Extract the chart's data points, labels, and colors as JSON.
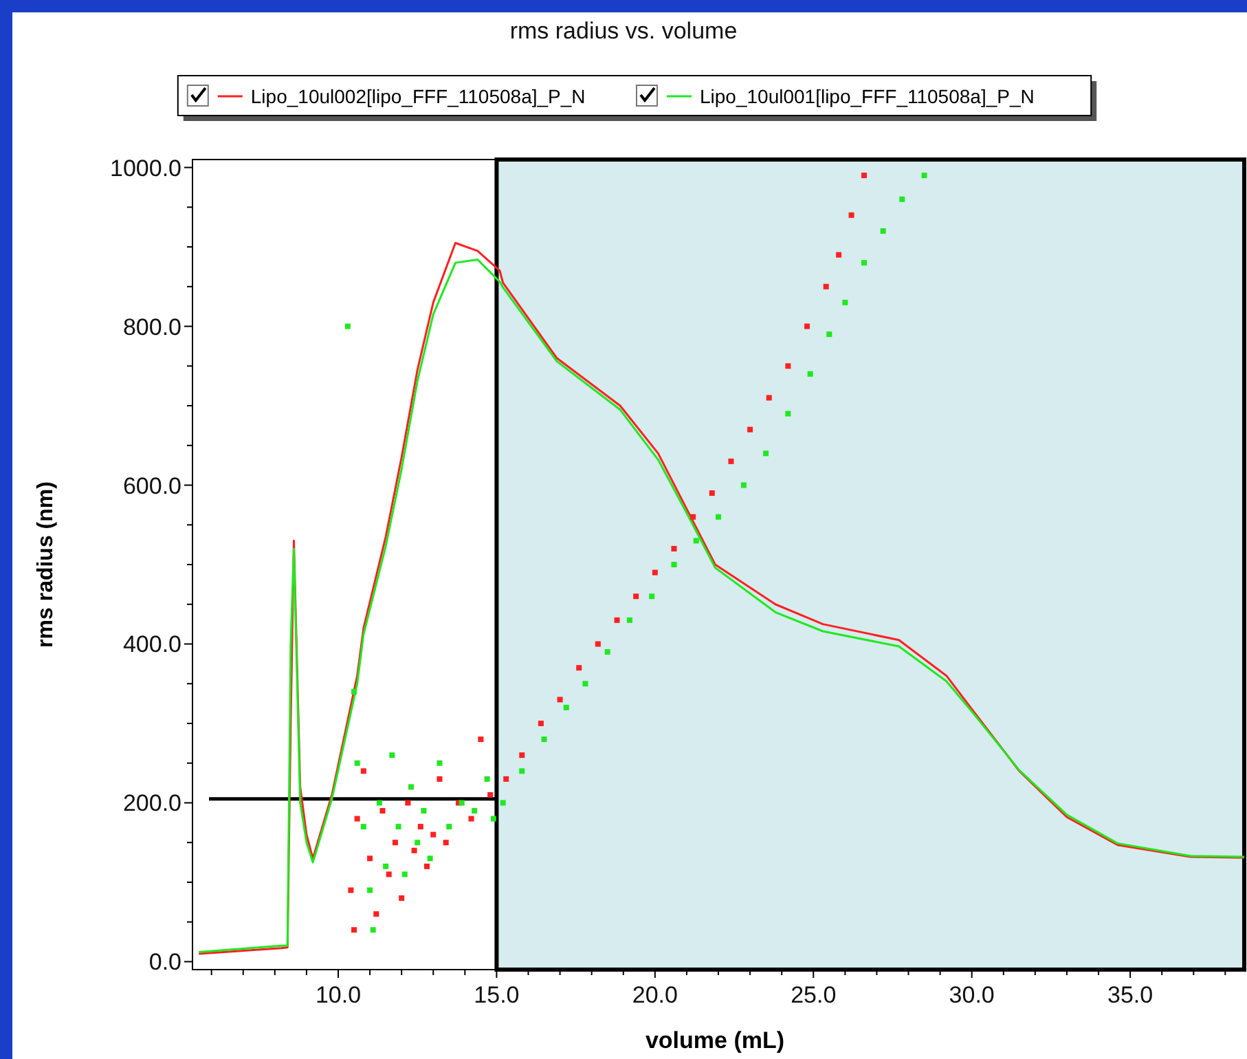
{
  "chart_data": {
    "type": "line",
    "title": "rms radius vs. volume",
    "xlabel": "volume (mL)",
    "ylabel": "rms radius (nm)",
    "xlim": [
      5.4,
      38.6
    ],
    "ylim": [
      -10,
      1010
    ],
    "xticks": [
      {
        "value": 6,
        "label": null
      },
      {
        "value": 7,
        "label": null
      },
      {
        "value": 8,
        "label": null
      },
      {
        "value": 9,
        "label": null
      },
      {
        "value": 10,
        "label": "10.0"
      },
      {
        "value": 11,
        "label": null
      },
      {
        "value": 12,
        "label": null
      },
      {
        "value": 13,
        "label": null
      },
      {
        "value": 14,
        "label": null
      },
      {
        "value": 15,
        "label": "15.0"
      },
      {
        "value": 16,
        "label": null
      },
      {
        "value": 17,
        "label": null
      },
      {
        "value": 18,
        "label": null
      },
      {
        "value": 19,
        "label": null
      },
      {
        "value": 20,
        "label": "20.0"
      },
      {
        "value": 21,
        "label": null
      },
      {
        "value": 22,
        "label": null
      },
      {
        "value": 23,
        "label": null
      },
      {
        "value": 24,
        "label": null
      },
      {
        "value": 25,
        "label": "25.0"
      },
      {
        "value": 26,
        "label": null
      },
      {
        "value": 27,
        "label": null
      },
      {
        "value": 28,
        "label": null
      },
      {
        "value": 29,
        "label": null
      },
      {
        "value": 30,
        "label": "30.0"
      },
      {
        "value": 31,
        "label": null
      },
      {
        "value": 32,
        "label": null
      },
      {
        "value": 33,
        "label": null
      },
      {
        "value": 34,
        "label": null
      },
      {
        "value": 35,
        "label": "35.0"
      },
      {
        "value": 36,
        "label": null
      },
      {
        "value": 37,
        "label": null
      },
      {
        "value": 38,
        "label": null
      }
    ],
    "yticks": [
      {
        "value": 0,
        "label": "0.0"
      },
      {
        "value": 50,
        "label": null
      },
      {
        "value": 100,
        "label": null
      },
      {
        "value": 150,
        "label": null
      },
      {
        "value": 200,
        "label": "200.0"
      },
      {
        "value": 250,
        "label": null
      },
      {
        "value": 300,
        "label": null
      },
      {
        "value": 350,
        "label": null
      },
      {
        "value": 400,
        "label": "400.0"
      },
      {
        "value": 450,
        "label": null
      },
      {
        "value": 500,
        "label": null
      },
      {
        "value": 550,
        "label": null
      },
      {
        "value": 600,
        "label": "600.0"
      },
      {
        "value": 650,
        "label": null
      },
      {
        "value": 700,
        "label": null
      },
      {
        "value": 750,
        "label": null
      },
      {
        "value": 800,
        "label": "800.0"
      },
      {
        "value": 850,
        "label": null
      },
      {
        "value": 900,
        "label": null
      },
      {
        "value": 950,
        "label": null
      },
      {
        "value": 1000,
        "label": "1000.0"
      }
    ],
    "legend": "top",
    "bands": [
      {
        "axis": "x",
        "from": 15,
        "to": 38.6,
        "color": "#d6ecef"
      }
    ],
    "ref_lines": [
      {
        "axis": "y",
        "value": 205,
        "color": "#000000"
      }
    ],
    "series": [
      {
        "name": "Lipo_10ul002[lipo_FFF_110508a]_P_N",
        "color": "#ff2020",
        "x": [
          5.6,
          8.2,
          8.4,
          8.5,
          8.6,
          8.8,
          9.0,
          9.2,
          9.8,
          10.6,
          10.8,
          11.5,
          12.0,
          12.5,
          13.0,
          13.7,
          14.4,
          15.1,
          15.2,
          16.9,
          18.9,
          20.1,
          21.0,
          21.9,
          23.8,
          25.3,
          27.7,
          29.2,
          30.0,
          31.5,
          33.0,
          34.6,
          36.9,
          38.6
        ],
        "values": [
          10,
          17,
          18,
          300,
          530,
          220,
          160,
          130,
          210,
          360,
          420,
          535,
          635,
          745,
          830,
          905,
          895,
          870,
          855,
          760,
          700,
          640,
          570,
          500,
          450,
          425,
          405,
          360,
          318,
          240,
          182,
          147,
          132,
          131
        ]
      },
      {
        "name": "Lipo_10ul001[lipo_FFF_110508a]_P_N",
        "color": "#20e820",
        "x": [
          5.6,
          8.2,
          8.4,
          8.5,
          8.6,
          8.8,
          9.0,
          9.2,
          9.8,
          10.6,
          10.8,
          11.5,
          12.0,
          12.5,
          13.0,
          13.7,
          14.4,
          15.1,
          15.2,
          16.9,
          18.9,
          20.1,
          21.0,
          21.9,
          23.8,
          25.3,
          27.7,
          29.2,
          30.0,
          31.5,
          33.0,
          34.6,
          36.9,
          38.6
        ],
        "values": [
          12,
          20,
          20,
          400,
          520,
          200,
          150,
          125,
          205,
          350,
          412,
          523,
          620,
          731,
          815,
          880,
          884,
          856,
          849,
          756,
          695,
          632,
          565,
          496,
          440,
          416,
          397,
          353,
          315,
          241,
          185,
          149,
          133,
          132
        ]
      },
      {
        "type": "scatter",
        "color": "#ff2020",
        "marker": "square",
        "x": [
          10.4,
          10.5,
          10.6,
          10.8,
          11.0,
          11.2,
          11.4,
          11.6,
          11.8,
          12.0,
          12.2,
          12.4,
          12.6,
          12.8,
          13.0,
          13.2,
          13.4,
          13.8,
          14.2,
          14.5,
          14.8,
          15.3,
          15.8,
          16.4,
          17.0,
          17.6,
          18.2,
          18.8,
          19.4,
          20.0,
          20.6,
          21.2,
          21.8,
          22.4,
          23.0,
          23.6,
          24.2,
          24.8,
          25.4,
          25.8,
          26.2,
          26.6
        ],
        "values": [
          90,
          40,
          180,
          240,
          130,
          60,
          190,
          110,
          150,
          80,
          200,
          140,
          170,
          120,
          160,
          230,
          150,
          200,
          180,
          280,
          210,
          230,
          260,
          300,
          330,
          370,
          400,
          430,
          460,
          490,
          520,
          560,
          590,
          630,
          670,
          710,
          750,
          800,
          850,
          890,
          940,
          990
        ]
      },
      {
        "type": "scatter",
        "color": "#20e820",
        "marker": "square",
        "x": [
          10.3,
          10.5,
          10.6,
          10.8,
          11.0,
          11.1,
          11.3,
          11.5,
          11.7,
          11.9,
          12.1,
          12.3,
          12.5,
          12.7,
          12.9,
          13.2,
          13.5,
          13.9,
          14.3,
          14.7,
          14.9,
          15.2,
          15.8,
          16.5,
          17.2,
          17.8,
          18.5,
          19.2,
          19.9,
          20.6,
          21.3,
          22.0,
          22.8,
          23.5,
          24.2,
          24.9,
          25.5,
          26.0,
          26.6,
          27.2,
          27.8,
          28.5
        ],
        "values": [
          800,
          340,
          250,
          170,
          90,
          40,
          200,
          120,
          260,
          170,
          110,
          220,
          150,
          190,
          130,
          250,
          170,
          200,
          190,
          230,
          180,
          200,
          240,
          280,
          320,
          350,
          390,
          430,
          460,
          500,
          530,
          560,
          600,
          640,
          690,
          740,
          790,
          830,
          880,
          920,
          960,
          990
        ]
      }
    ]
  }
}
